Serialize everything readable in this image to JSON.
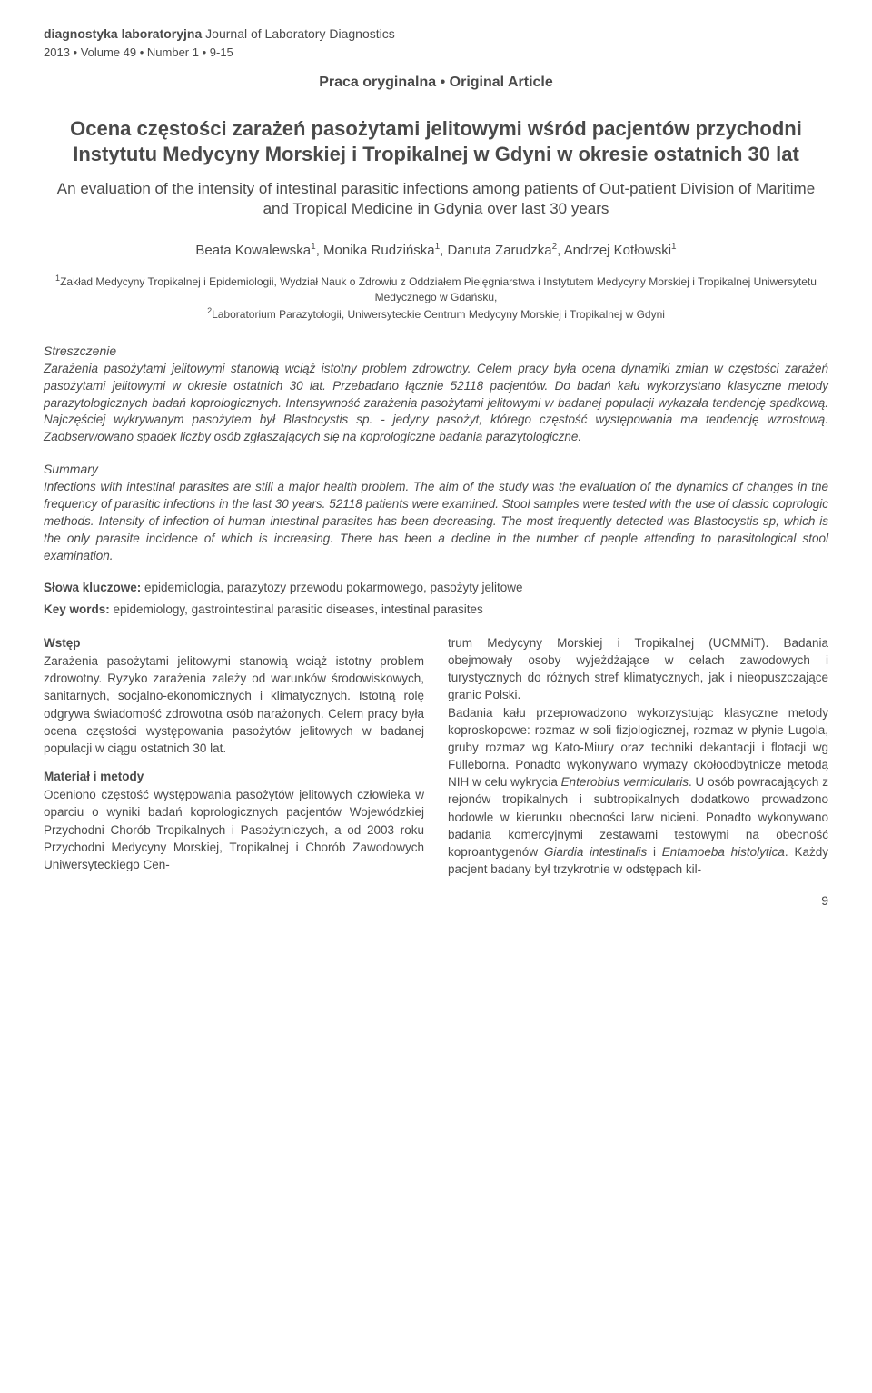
{
  "header": {
    "journal_bold": "diagnostyka laboratoryjna",
    "journal_rest": " Journal of Laboratory Diagnostics",
    "issue": "2013 • Volume 49 • Number 1 • 9-15",
    "article_type": "Praca oryginalna • Original Article"
  },
  "titles": {
    "polish": "Ocena częstości zarażeń pasożytami jelitowymi wśród pacjentów przychodni Instytutu Medycyny Morskiej i Tropikalnej w Gdyni w okresie ostatnich 30 lat",
    "english": "An evaluation of the intensity of intestinal parasitic infections among patients of Out-patient Division of Maritime and Tropical Medicine in Gdynia over last 30 years"
  },
  "authors_html": "Beata Kowalewska<sup>1</sup>, Monika Rudzińska<sup>1</sup>, Danuta Zarudzka<sup>2</sup>, Andrzej Kotłowski<sup>1</sup>",
  "affiliations_html": "<sup>1</sup>Zakład Medycyny Tropikalnej i Epidemiologii, Wydział Nauk o Zdrowiu z Oddziałem Pielęgniarstwa i Instytutem Medycyny Morskiej i Tropikalnej Uniwersytetu Medycznego w Gdańsku,<br><sup>2</sup>Laboratorium Parazytologii, Uniwersyteckie Centrum Medycyny Morskiej i Tropikalnej w Gdyni",
  "abstract_pl": {
    "heading": "Streszczenie",
    "body": "Zarażenia pasożytami jelitowymi stanowią wciąż istotny problem zdrowotny. Celem pracy była ocena dynamiki zmian w częstości zarażeń pasożytami jelitowymi w okresie ostatnich 30 lat. Przebadano łącznie 52118 pacjentów. Do badań kału wykorzystano klasyczne metody parazytologicznych badań koprologicznych. Intensywność zarażenia pasożytami jelitowymi w badanej populacji wykazała tendencję spadkową. Najczęściej wykrywanym pasożytem był Blastocystis sp. - jedyny pasożyt, którego częstość występowania ma tendencję wzrostową. Zaobserwowano spadek liczby osób zgłaszających się na koprologiczne badania parazytologiczne."
  },
  "abstract_en": {
    "heading": "Summary",
    "body": "Infections with intestinal parasites are still a major health problem. The aim of the study was the evaluation of the dynamics of changes in the frequency of parasitic infections in the last 30 years. 52118 patients were examined. Stool samples were tested with the use of classic coprologic methods. Intensity of infection of human intestinal parasites has been decreasing. The most frequently detected was Blastocystis sp, which is the only parasite incidence of which is increasing. There has been a decline in the number of people attending to parasitological stool examination."
  },
  "keywords": {
    "pl_label": "Słowa kluczowe:",
    "pl_text": " epidemiologia, parazytozy przewodu pokarmowego, pasożyty jelitowe",
    "en_label": "Key words:",
    "en_text": " epidemiology, gastrointestinal parasitic diseases, intestinal parasites"
  },
  "body": {
    "left": {
      "h1": "Wstęp",
      "p1": "Zarażenia pasożytami jelitowymi stanowią wciąż istotny problem zdrowotny. Ryzyko zarażenia zależy od warunków środowiskowych, sanitarnych, socjalno-ekonomicznych i klimatycznych. Istotną rolę odgrywa świadomość zdrowotna osób narażonych. Celem pracy była ocena częstości występowania pasożytów jelitowych w badanej populacji w ciągu ostatnich 30 lat.",
      "h2": "Materiał i metody",
      "p2": "Oceniono częstość występowania pasożytów jelitowych człowieka w oparciu o wyniki badań koprologicznych pacjentów Wojewódzkiej Przychodni Chorób Tropikalnych i Pasożytniczych, a od 2003 roku Przychodni Medycyny Morskiej, Tropikalnej i Chorób Zawodowych Uniwersyteckiego Cen-"
    },
    "right": {
      "p1": "trum Medycyny Morskiej i Tropikalnej (UCMMiT). Badania obejmowały osoby wyjeżdżające w celach zawodowych i turystycznych do różnych stref klimatycznych, jak i nieopuszczające granic Polski.",
      "p2_html": "Badania kału przeprowadzono wykorzystując klasyczne metody koproskopowe: rozmaz w soli fizjologicznej, rozmaz w płynie Lugola, gruby rozmaz wg Kato-Miury oraz techniki dekantacji i flotacji wg Fulleborna. Ponadto wykonywano wymazy okołoodbytnicze metodą NIH w celu wykrycia <i>Enterobius vermicularis</i>. U osób powracających z rejonów tropikalnych i subtropikalnych dodatkowo prowadzono hodowle w kierunku obecności larw nicieni. Ponadto wykonywano badania komercyjnymi zestawami testowymi na obecność koproantygenów <i>Giardia intestinalis</i> i <i>Entamoeba histolytica</i>. Każdy pacjent badany był trzykrotnie w odstępach kil-"
    }
  },
  "page_number": "9"
}
